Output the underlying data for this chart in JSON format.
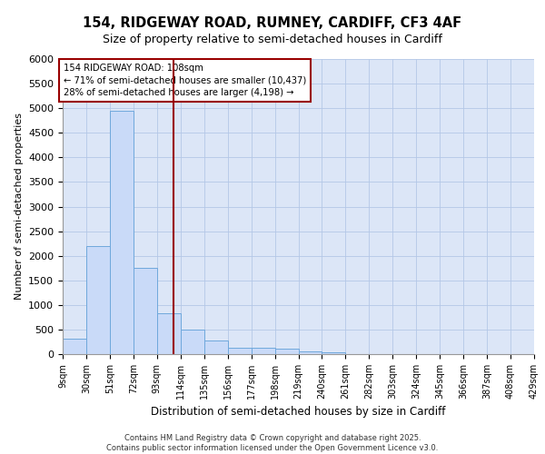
{
  "title_line1": "154, RIDGEWAY ROAD, RUMNEY, CARDIFF, CF3 4AF",
  "title_line2": "Size of property relative to semi-detached houses in Cardiff",
  "xlabel": "Distribution of semi-detached houses by size in Cardiff",
  "ylabel": "Number of semi-detached properties",
  "footer_line1": "Contains HM Land Registry data © Crown copyright and database right 2025.",
  "footer_line2": "Contains public sector information licensed under the Open Government Licence v3.0.",
  "annotation_title": "154 RIDGEWAY ROAD: 108sqm",
  "annotation_line1": "← 71% of semi-detached houses are smaller (10,437)",
  "annotation_line2": "28% of semi-detached houses are larger (4,198) →",
  "property_size": 108,
  "bin_edges": [
    9,
    30,
    51,
    72,
    93,
    114,
    135,
    156,
    177,
    198,
    219,
    240,
    261,
    282,
    303,
    324,
    345,
    366,
    387,
    408,
    429
  ],
  "bin_counts": [
    310,
    2200,
    4950,
    1750,
    830,
    500,
    280,
    130,
    130,
    110,
    50,
    35,
    0,
    0,
    0,
    0,
    0,
    0,
    0,
    0
  ],
  "bar_color": "#c9daf8",
  "bar_edge_color": "#6fa8dc",
  "vline_color": "#990000",
  "annotation_box_color": "#990000",
  "bg_color": "#dce6f7",
  "grid_color": "#b4c7e7",
  "ylim": [
    0,
    6000
  ],
  "yticks": [
    0,
    500,
    1000,
    1500,
    2000,
    2500,
    3000,
    3500,
    4000,
    4500,
    5000,
    5500,
    6000
  ]
}
